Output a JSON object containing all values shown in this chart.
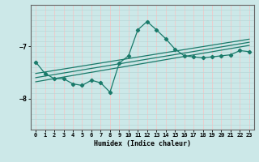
{
  "xlabel": "Humidex (Indice chaleur)",
  "ylabel": "",
  "bg_color": "#cce8e8",
  "grid_color_v": "#f0c8c8",
  "grid_color_h": "#b8d8d8",
  "line_color": "#1a7a6a",
  "ylim": [
    -8.6,
    -6.2
  ],
  "xlim": [
    -0.5,
    23.5
  ],
  "yticks": [
    -8,
    -7
  ],
  "xticks": [
    0,
    1,
    2,
    3,
    4,
    5,
    6,
    7,
    8,
    9,
    10,
    11,
    12,
    13,
    14,
    15,
    16,
    17,
    18,
    19,
    20,
    21,
    22,
    23
  ],
  "data_x": [
    0,
    1,
    2,
    3,
    4,
    5,
    6,
    7,
    8,
    9,
    10,
    11,
    12,
    13,
    14,
    15,
    16,
    17,
    18,
    19,
    20,
    21,
    22,
    23
  ],
  "data_y": [
    -7.3,
    -7.52,
    -7.62,
    -7.62,
    -7.72,
    -7.75,
    -7.65,
    -7.7,
    -7.88,
    -7.32,
    -7.18,
    -6.68,
    -6.52,
    -6.68,
    -6.85,
    -7.05,
    -7.18,
    -7.2,
    -7.22,
    -7.2,
    -7.18,
    -7.16,
    -7.08,
    -7.1
  ],
  "reg_lines": [
    {
      "x0": 0,
      "y0": -7.68,
      "x1": 23,
      "y1": -6.98
    },
    {
      "x0": 0,
      "y0": -7.6,
      "x1": 23,
      "y1": -6.92
    },
    {
      "x0": 0,
      "y0": -7.52,
      "x1": 23,
      "y1": -6.86
    }
  ]
}
